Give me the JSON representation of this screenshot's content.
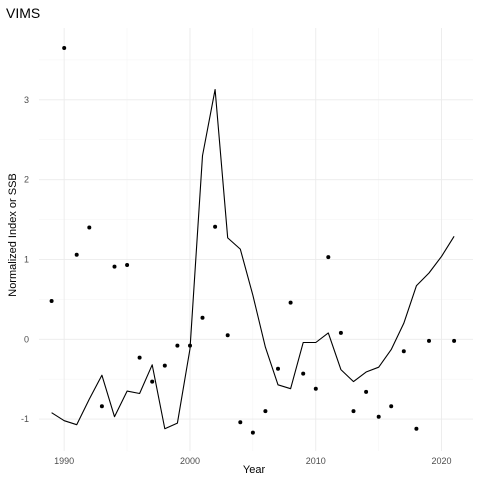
{
  "chart_data": {
    "type": "line",
    "title": "VIMS",
    "xlabel": "Year",
    "ylabel": "Normalized Index or SSB",
    "xlim": [
      1988,
      2022.5
    ],
    "ylim": [
      -1.4,
      3.9
    ],
    "x_ticks": [
      1990,
      2000,
      2010,
      2020
    ],
    "y_ticks": [
      -1,
      0,
      1,
      2,
      3
    ],
    "grid": true,
    "legend": "none",
    "series": [
      {
        "type": "line",
        "color": "#000000",
        "x": [
          1989,
          1990,
          1991,
          1992,
          1993,
          1994,
          1995,
          1996,
          1997,
          1998,
          1999,
          2000,
          2001,
          2002,
          2003,
          2004,
          2005,
          2006,
          2007,
          2008,
          2009,
          2010,
          2011,
          2012,
          2013,
          2014,
          2015,
          2016,
          2017,
          2018,
          2019,
          2020,
          2021
        ],
        "y": [
          -0.92,
          -1.02,
          -1.07,
          -0.75,
          -0.45,
          -0.97,
          -0.65,
          -0.68,
          -0.32,
          -1.12,
          -1.05,
          -0.12,
          2.3,
          3.13,
          1.27,
          1.13,
          0.55,
          -0.1,
          -0.57,
          -0.62,
          -0.04,
          -0.04,
          0.08,
          -0.38,
          -0.53,
          -0.41,
          -0.35,
          -0.13,
          0.2,
          0.67,
          0.83,
          1.04,
          1.29
        ]
      },
      {
        "type": "scatter",
        "color": "#000000",
        "x": [
          1989,
          1990,
          1991,
          1992,
          1993,
          1994,
          1995,
          1996,
          1997,
          1998,
          1999,
          2000,
          2001,
          2002,
          2003,
          2004,
          2005,
          2006,
          2007,
          2008,
          2009,
          2010,
          2011,
          2012,
          2013,
          2014,
          2015,
          2016,
          2017,
          2018,
          2019,
          2021
        ],
        "y": [
          0.48,
          3.65,
          1.06,
          1.4,
          -0.84,
          0.91,
          0.93,
          -0.23,
          -0.53,
          -0.33,
          -0.08,
          -0.08,
          0.27,
          1.41,
          0.05,
          -1.04,
          -1.17,
          -0.9,
          -0.37,
          0.46,
          -0.43,
          -0.62,
          1.03,
          0.08,
          -0.9,
          -0.66,
          -0.97,
          -0.84,
          -0.15,
          -1.12,
          -0.02,
          -0.02
        ]
      }
    ]
  }
}
